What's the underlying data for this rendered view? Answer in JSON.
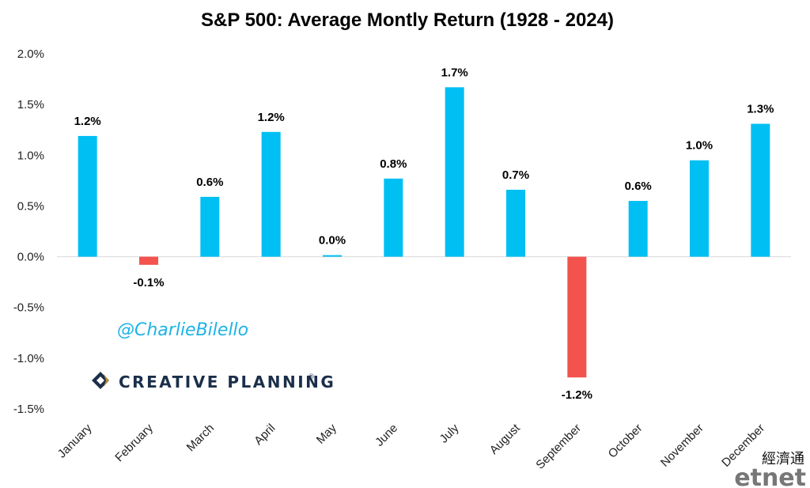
{
  "chart_data": {
    "type": "bar",
    "title": "S&P 500: Average Montly Return (1928 - 2024)",
    "categories": [
      "January",
      "February",
      "March",
      "April",
      "May",
      "June",
      "July",
      "August",
      "September",
      "October",
      "November",
      "December"
    ],
    "values": [
      1.19,
      -0.08,
      0.59,
      1.23,
      0.01,
      0.77,
      1.67,
      0.66,
      -1.19,
      0.55,
      0.95,
      1.31
    ],
    "data_labels": [
      "1.2%",
      "-0.1%",
      "0.6%",
      "1.2%",
      "0.0%",
      "0.8%",
      "1.7%",
      "0.7%",
      "-1.2%",
      "0.6%",
      "1.0%",
      "1.3%"
    ],
    "yticks": [
      "2.0%",
      "1.5%",
      "1.0%",
      "0.5%",
      "0.0%",
      "-0.5%",
      "-1.0%",
      "-1.5%"
    ],
    "ytick_values": [
      2.0,
      1.5,
      1.0,
      0.5,
      0.0,
      -0.5,
      -1.0,
      -1.5
    ],
    "ylim": [
      -1.5,
      2.0
    ],
    "xlabel": "",
    "ylabel": "",
    "grid": false,
    "colors": {
      "positive": "#00bff3",
      "negative": "#f4524d"
    }
  },
  "watermark": "@CharlieBilello",
  "brand": {
    "name": "CREATIVE PLANNING",
    "trademark": "®"
  },
  "source_logo": {
    "chinese": "經濟通",
    "name": "etnet"
  }
}
